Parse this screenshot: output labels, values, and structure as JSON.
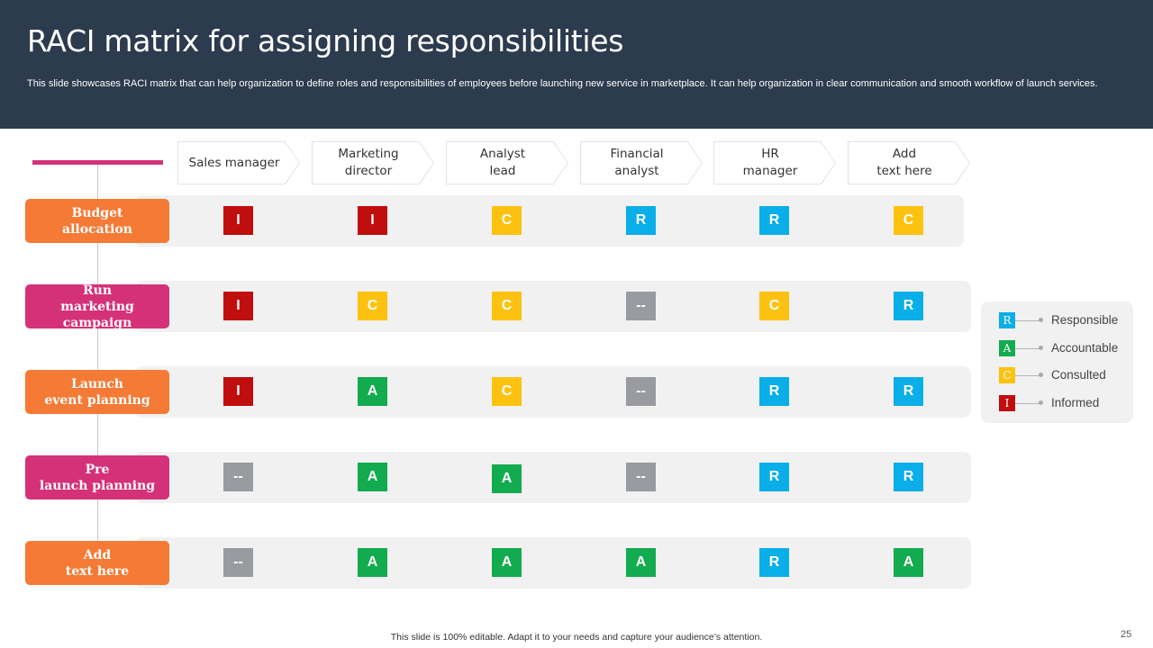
{
  "header": {
    "title": "RACI matrix for assigning responsibilities",
    "subtitle": "This slide showcases RACI matrix that can help organization to define roles and responsibilities of employees before launching new service in marketplace. It can help organization in clear communication and smooth workflow of launch services."
  },
  "columns": [
    "Sales manager",
    "Marketing\ndirector",
    "Analyst\nlead",
    "Financial\nanalyst",
    "HR\nmanager",
    "Add\ntext here"
  ],
  "rows": [
    {
      "label": "Budget\nallocation",
      "color": "#f47a35",
      "cells": [
        "I",
        "I",
        "C",
        "R",
        "R",
        "C"
      ]
    },
    {
      "label": "Run\nmarketing campaign",
      "color": "#d53179",
      "cells": [
        "I",
        "C",
        "C",
        "--",
        "C",
        "R"
      ]
    },
    {
      "label": "Launch\nevent planning",
      "color": "#f47a35",
      "cells": [
        "I",
        "A",
        "C",
        "--",
        "R",
        "R"
      ]
    },
    {
      "label": "Pre\nlaunch planning",
      "color": "#d53179",
      "cells": [
        "--",
        "A",
        "A",
        "--",
        "R",
        "R"
      ]
    },
    {
      "label": "Add\ntext here",
      "color": "#f47a35",
      "cells": [
        "--",
        "A",
        "A",
        "A",
        "R",
        "A"
      ]
    }
  ],
  "colors": {
    "R": "#0aaee8",
    "A": "#13ab4f",
    "C": "#fcc20f",
    "I": "#c00d0d",
    "--": "#9a9ba0",
    "header_bg": "#2c3b4d",
    "accent": "#d3317a"
  },
  "legend": [
    {
      "key": "R",
      "label": "Responsible"
    },
    {
      "key": "A",
      "label": "Accountable"
    },
    {
      "key": "C",
      "label": "Consulted"
    },
    {
      "key": "I",
      "label": "Informed"
    }
  ],
  "footer": {
    "note": "This slide is 100% editable.  Adapt it to your needs and capture your audience’s attention.",
    "page_number": "25"
  }
}
